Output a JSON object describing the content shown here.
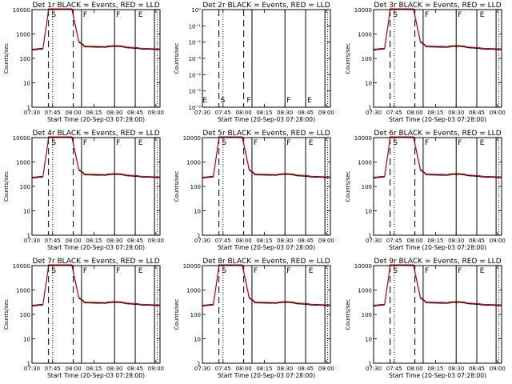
{
  "colors": {
    "events": "#000000",
    "lld": "#cc0000",
    "background": "#ffffff"
  },
  "chart_data": [
    {
      "type": "line",
      "title": "Det 1r BLACK = Events, RED = LLD",
      "xlabel": "Start Time (20-Sep-03 07:28:00)",
      "ylabel": "Counts/sec",
      "xticks": [
        "07:30",
        "07:45",
        "08:00",
        "08:15",
        "08:30",
        "08:45",
        "09:00"
      ],
      "yticks": [
        "1",
        "10",
        "100",
        "1000",
        "10000"
      ],
      "xlim_min": [
        2,
        95
      ],
      "ylim": [
        1,
        15000
      ],
      "markers": [
        "S",
        "F",
        "F",
        "E"
      ],
      "has_data": true,
      "series": [
        {
          "name": "Events",
          "color": "#000000"
        },
        {
          "name": "LLD",
          "color": "#cc0000"
        }
      ]
    },
    {
      "type": "line",
      "title": "Det 2r BLACK = Events, RED = LLD",
      "xlabel": "Start Time (20-Sep-03 07:28:00)",
      "ylabel": "Counts/sec",
      "xticks": [
        "07:30",
        "07:45",
        "08:00",
        "08:15",
        "08:30",
        "08:45",
        "09:00"
      ],
      "yticks": [
        "10⁻⁶",
        "10⁻⁵",
        "10⁻⁴",
        "10⁻³",
        "10⁻²",
        "10⁻¹",
        "10⁰"
      ],
      "xlim_min": [
        2,
        95
      ],
      "ylim": [
        1e-06,
        1
      ],
      "markers": [
        "E",
        "S",
        "F",
        "F",
        "E"
      ],
      "has_data": false,
      "series": []
    },
    {
      "type": "line",
      "title": "Det 3r BLACK = Events, RED = LLD",
      "xlabel": "Start Time (20-Sep-03 07:28:00)",
      "ylabel": "Counts/sec",
      "xticks": [
        "07:30",
        "07:45",
        "08:00",
        "08:15",
        "08:30",
        "08:45",
        "09:00"
      ],
      "yticks": [
        "1",
        "10",
        "100",
        "1000",
        "10000"
      ],
      "xlim_min": [
        2,
        95
      ],
      "ylim": [
        1,
        15000
      ],
      "markers": [
        "S",
        "F",
        "F",
        "E"
      ],
      "has_data": true,
      "series": [
        {
          "name": "Events",
          "color": "#000000"
        },
        {
          "name": "LLD",
          "color": "#cc0000"
        }
      ]
    },
    {
      "type": "line",
      "title": "Det 4r BLACK = Events, RED = LLD",
      "xlabel": "Start Time (20-Sep-03 07:28:00)",
      "ylabel": "Counts/sec",
      "xticks": [
        "07:30",
        "07:45",
        "08:00",
        "08:15",
        "08:30",
        "08:45",
        "09:00"
      ],
      "yticks": [
        "1",
        "10",
        "100",
        "1000",
        "10000"
      ],
      "xlim_min": [
        2,
        95
      ],
      "ylim": [
        1,
        15000
      ],
      "markers": [
        "S",
        "F",
        "F",
        "E"
      ],
      "has_data": true,
      "series": [
        {
          "name": "Events",
          "color": "#000000"
        },
        {
          "name": "LLD",
          "color": "#cc0000"
        }
      ]
    },
    {
      "type": "line",
      "title": "Det 5r BLACK = Events, RED = LLD",
      "xlabel": "Start Time (20-Sep-03 07:28:00)",
      "ylabel": "Counts/sec",
      "xticks": [
        "07:30",
        "07:45",
        "08:00",
        "08:15",
        "08:30",
        "08:45",
        "09:00"
      ],
      "yticks": [
        "1",
        "10",
        "100",
        "1000",
        "10000"
      ],
      "xlim_min": [
        2,
        95
      ],
      "ylim": [
        1,
        15000
      ],
      "markers": [
        "S",
        "F",
        "F",
        "E"
      ],
      "has_data": true,
      "series": [
        {
          "name": "Events",
          "color": "#000000"
        },
        {
          "name": "LLD",
          "color": "#cc0000"
        }
      ]
    },
    {
      "type": "line",
      "title": "Det 6r BLACK = Events, RED = LLD",
      "xlabel": "Start Time (20-Sep-03 07:28:00)",
      "ylabel": "Counts/sec",
      "xticks": [
        "07:30",
        "07:45",
        "08:00",
        "08:15",
        "08:30",
        "08:45",
        "09:00"
      ],
      "yticks": [
        "1",
        "10",
        "100",
        "1000",
        "10000"
      ],
      "xlim_min": [
        2,
        95
      ],
      "ylim": [
        1,
        15000
      ],
      "markers": [
        "S",
        "F",
        "F",
        "E"
      ],
      "has_data": true,
      "series": [
        {
          "name": "Events",
          "color": "#000000"
        },
        {
          "name": "LLD",
          "color": "#cc0000"
        }
      ]
    },
    {
      "type": "line",
      "title": "Det 7r BLACK = Events, RED = LLD",
      "xlabel": "Start Time (20-Sep-03 07:28:00)",
      "ylabel": "Counts/sec",
      "xticks": [
        "07:30",
        "07:45",
        "08:00",
        "08:15",
        "08:30",
        "08:45",
        "09:00"
      ],
      "yticks": [
        "1",
        "10",
        "100",
        "1000",
        "10000"
      ],
      "xlim_min": [
        2,
        95
      ],
      "ylim": [
        1,
        15000
      ],
      "markers": [
        "S",
        "F",
        "F",
        "E"
      ],
      "has_data": true,
      "series": [
        {
          "name": "Events",
          "color": "#000000"
        },
        {
          "name": "LLD",
          "color": "#cc0000"
        }
      ]
    },
    {
      "type": "line",
      "title": "Det 8r BLACK = Events, RED = LLD",
      "xlabel": "Start Time (20-Sep-03 07:28:00)",
      "ylabel": "Counts/sec",
      "xticks": [
        "07:30",
        "07:45",
        "08:00",
        "08:15",
        "08:30",
        "08:45",
        "09:00"
      ],
      "yticks": [
        "1",
        "10",
        "100",
        "1000",
        "10000"
      ],
      "xlim_min": [
        2,
        95
      ],
      "ylim": [
        1,
        15000
      ],
      "markers": [
        "S",
        "F",
        "F",
        "E"
      ],
      "has_data": true,
      "series": [
        {
          "name": "Events",
          "color": "#000000"
        },
        {
          "name": "LLD",
          "color": "#cc0000"
        }
      ]
    },
    {
      "type": "line",
      "title": "Det 9r BLACK = Events, RED = LLD",
      "xlabel": "Start Time (20-Sep-03 07:28:00)",
      "ylabel": "Counts/sec",
      "xticks": [
        "07:30",
        "07:45",
        "08:00",
        "08:15",
        "08:30",
        "08:45",
        "09:00"
      ],
      "yticks": [
        "1",
        "10",
        "100",
        "1000",
        "10000"
      ],
      "xlim_min": [
        2,
        95
      ],
      "ylim": [
        1,
        15000
      ],
      "markers": [
        "S",
        "F",
        "F",
        "E"
      ],
      "has_data": true,
      "series": [
        {
          "name": "Events",
          "color": "#000000"
        },
        {
          "name": "LLD",
          "color": "#cc0000"
        }
      ]
    }
  ]
}
